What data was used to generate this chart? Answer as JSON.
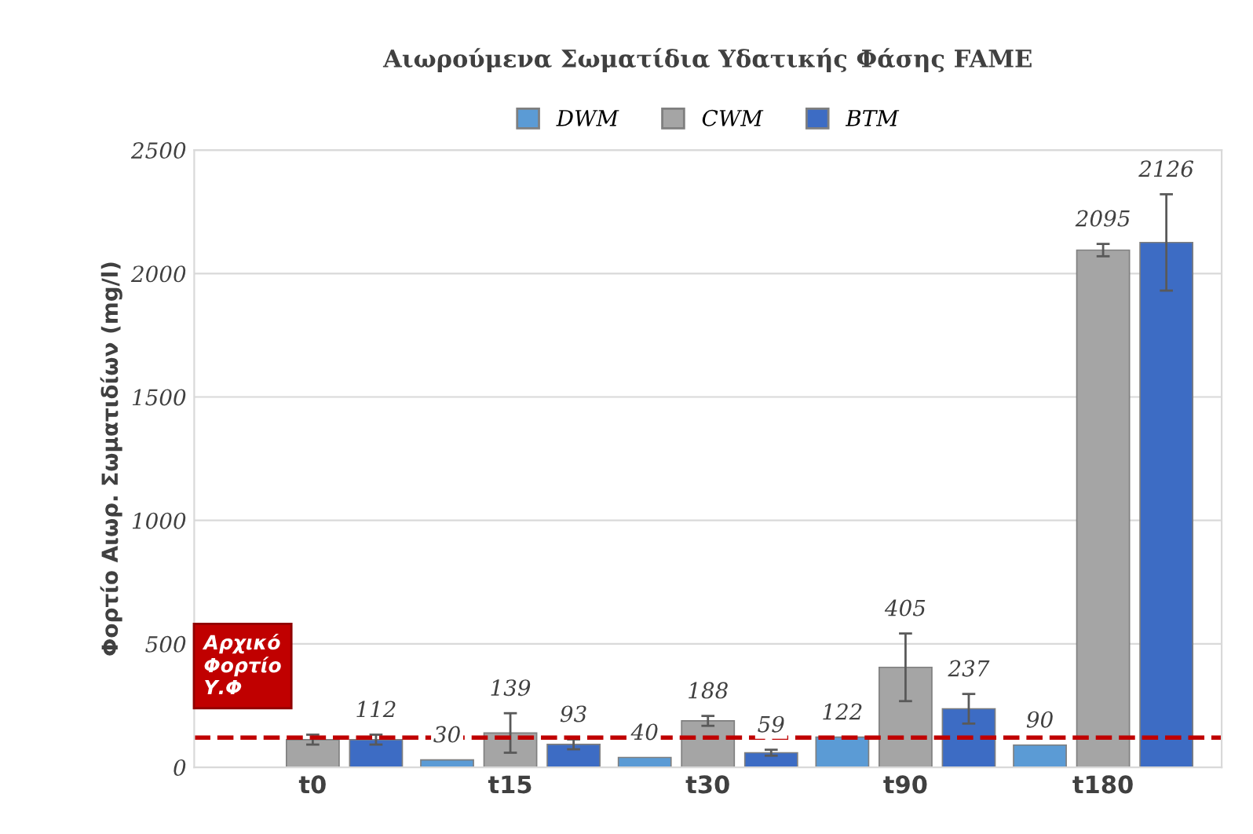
{
  "chart_data": {
    "type": "bar",
    "title": "Αιωρούμενα Σωματίδια Υδατικής Φάσης FAME",
    "ylabel": "Φορτίο Αιωρ. Σωματιδίων (mg/l)",
    "categories": [
      "t0",
      "t15",
      "t30",
      "t90",
      "t180"
    ],
    "series": [
      {
        "name": "DWM",
        "color": "#5b9bd5",
        "values": [
          null,
          30,
          40,
          122,
          90
        ],
        "value_labels": [
          null,
          "30",
          "40",
          "122",
          "90"
        ]
      },
      {
        "name": "CWM",
        "color": "#a5a5a5",
        "values": [
          112,
          139,
          188,
          405,
          2095
        ],
        "errors": [
          20,
          80,
          20,
          137,
          25
        ],
        "value_labels": [
          null,
          "139",
          "188",
          "405",
          "2095"
        ]
      },
      {
        "name": "BTΜ",
        "color": "#3d6cc4",
        "values": [
          112,
          93,
          59,
          237,
          2126
        ],
        "errors": [
          20,
          20,
          12,
          60,
          195
        ],
        "value_labels": [
          "112",
          "93",
          "59",
          "237",
          "2126"
        ]
      }
    ],
    "ylim": [
      0,
      2500
    ],
    "yticks": [
      0,
      500,
      1000,
      1500,
      2000,
      2500
    ],
    "grid": "y",
    "legend": "top",
    "ref_lines": [
      {
        "axis": "y",
        "value": 120,
        "label": "Αρχικό\nΦορτίο\nΥ.Φ",
        "color": "#c00000",
        "line_style": "dashed"
      }
    ]
  }
}
